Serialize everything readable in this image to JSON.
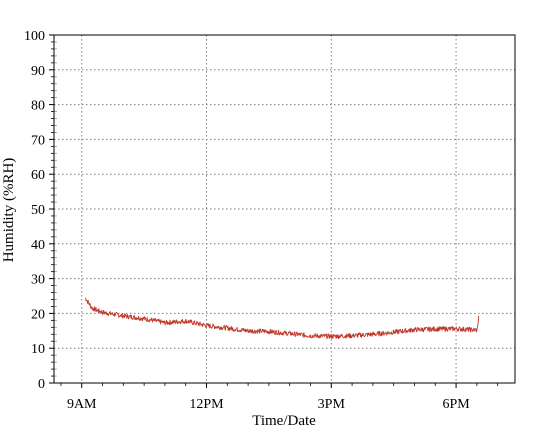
{
  "chart_data": {
    "type": "line",
    "xlabel": "Time/Date",
    "ylabel": "Humidity (%RH)",
    "ylim": [
      0,
      100
    ],
    "yticks": [
      0,
      10,
      20,
      30,
      40,
      50,
      60,
      70,
      80,
      90,
      100
    ],
    "xlim": [
      "08:20",
      "19:25"
    ],
    "xticks": [
      {
        "time": "09:00",
        "label": "9AM"
      },
      {
        "time": "12:00",
        "label": "12PM"
      },
      {
        "time": "15:00",
        "label": "3PM"
      },
      {
        "time": "18:00",
        "label": "6PM"
      }
    ],
    "grid": true,
    "series": [
      {
        "color": "#c0392b",
        "points": [
          {
            "t": "09:05",
            "y": 24.5
          },
          {
            "t": "09:15",
            "y": 21.5
          },
          {
            "t": "09:30",
            "y": 20.3
          },
          {
            "t": "10:00",
            "y": 19.3
          },
          {
            "t": "10:30",
            "y": 18.5
          },
          {
            "t": "11:00",
            "y": 17.3
          },
          {
            "t": "11:30",
            "y": 17.8
          },
          {
            "t": "12:00",
            "y": 16.5
          },
          {
            "t": "12:30",
            "y": 15.8
          },
          {
            "t": "13:00",
            "y": 15.0
          },
          {
            "t": "13:30",
            "y": 14.8
          },
          {
            "t": "14:00",
            "y": 14.2
          },
          {
            "t": "14:30",
            "y": 13.6
          },
          {
            "t": "15:00",
            "y": 13.4
          },
          {
            "t": "15:30",
            "y": 13.6
          },
          {
            "t": "16:00",
            "y": 14.0
          },
          {
            "t": "16:30",
            "y": 14.6
          },
          {
            "t": "17:00",
            "y": 15.3
          },
          {
            "t": "17:30",
            "y": 15.5
          },
          {
            "t": "18:00",
            "y": 15.6
          },
          {
            "t": "18:30",
            "y": 15.2
          },
          {
            "t": "18:32",
            "y": 17.5
          },
          {
            "t": "18:33",
            "y": 20.5
          }
        ]
      }
    ]
  }
}
